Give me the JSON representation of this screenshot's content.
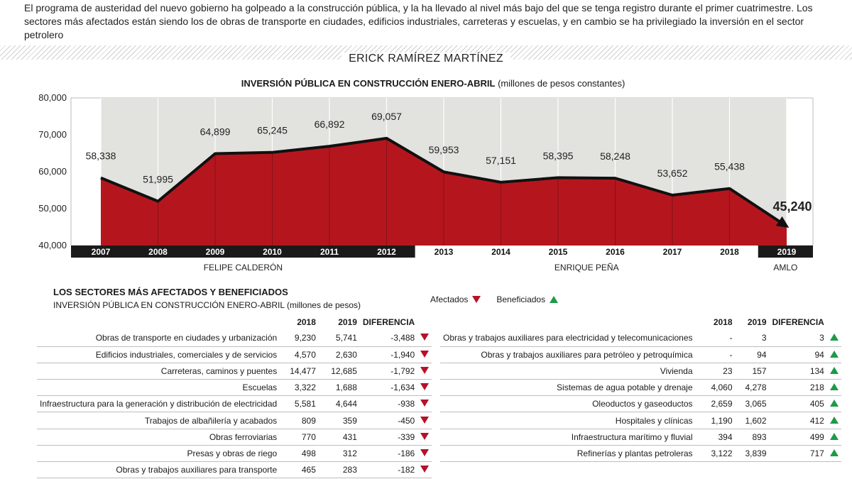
{
  "intro": "El programa de austeridad del nuevo gobierno ha golpeado a la construcción pública, y la ha llevado al nivel más bajo del que se tenga registro durante el primer cuatrimestre. Los sectores más afectados están siendo los de obras de transporte en ciudades, edificios industriales, carreteras y escuelas, y en cambio se ha privilegiado la inversión en el sector petrolero",
  "author": "ERICK RAMÍREZ MARTÍNEZ",
  "chart_data": {
    "type": "area",
    "title": "INVERSIÓN PÚBLICA EN CONSTRUCCIÓN ENERO-ABRIL",
    "title_unit": "(millones de pesos constantes)",
    "categories": [
      "2007",
      "2008",
      "2009",
      "2010",
      "2011",
      "2012",
      "2013",
      "2014",
      "2015",
      "2016",
      "2017",
      "2018",
      "2019"
    ],
    "values": [
      58338,
      51995,
      64899,
      65245,
      66892,
      69057,
      59953,
      57151,
      58395,
      58248,
      53652,
      55438,
      45240
    ],
    "value_labels": [
      "58,338",
      "51,995",
      "64,899",
      "65,245",
      "66,892",
      "69,057",
      "59,953",
      "57,151",
      "58,395",
      "58,248",
      "53,652",
      "55,438",
      "45,240"
    ],
    "ylim": [
      40000,
      80000
    ],
    "y_ticks": [
      40000,
      50000,
      60000,
      70000,
      80000
    ],
    "y_tick_labels": [
      "40,000",
      "50,000",
      "60,000",
      "70,000",
      "80,000"
    ],
    "grid": true,
    "area_color": "#b5161e",
    "background_color": "#e2e2de",
    "periods": [
      {
        "label": "FELIPE CALDERÓN",
        "start": "2007",
        "end": "2012",
        "bar_color": "#1a1a1a"
      },
      {
        "label": "ENRIQUE PEÑA",
        "start": "2013",
        "end": "2018",
        "bar_color": "#ffffff"
      },
      {
        "label": "AMLO",
        "start": "2019",
        "end": "2019",
        "bar_color": "#1a1a1a"
      }
    ]
  },
  "sectors": {
    "title": "LOS SECTORES MÁS AFECTADOS Y BENEFICIADOS",
    "subtitle": "INVERSIÓN PÚBLICA EN CONSTRUCCIÓN ENERO-ABRIL (millones de pesos)",
    "legend_affected": "Afectados",
    "legend_benefited": "Beneficiados",
    "columns": [
      "",
      "2018",
      "2019",
      "DIFERENCIA"
    ],
    "affected": [
      {
        "name": "Obras de transporte en ciudades y urbanización",
        "y2018": "9,230",
        "y2019": "5,741",
        "diff": "-3,488"
      },
      {
        "name": "Edificios industriales, comerciales y de servicios",
        "y2018": "4,570",
        "y2019": "2,630",
        "diff": "-1,940"
      },
      {
        "name": "Carreteras, caminos y puentes",
        "y2018": "14,477",
        "y2019": "12,685",
        "diff": "-1,792"
      },
      {
        "name": "Escuelas",
        "y2018": "3,322",
        "y2019": "1,688",
        "diff": "-1,634"
      },
      {
        "name": "Infraestructura para la generación y distribución de electricidad",
        "y2018": "5,581",
        "y2019": "4,644",
        "diff": "-938"
      },
      {
        "name": "Trabajos de albañilería y acabados",
        "y2018": "809",
        "y2019": "359",
        "diff": "-450"
      },
      {
        "name": "Obras ferroviarias",
        "y2018": "770",
        "y2019": "431",
        "diff": "-339"
      },
      {
        "name": "Presas y obras de riego",
        "y2018": "498",
        "y2019": "312",
        "diff": "-186"
      },
      {
        "name": "Obras y trabajos auxiliares para transporte",
        "y2018": "465",
        "y2019": "283",
        "diff": "-182"
      }
    ],
    "benefited": [
      {
        "name": "Obras y trabajos auxiliares para electricidad y telecomunicaciones",
        "y2018": "-",
        "y2019": "3",
        "diff": "3"
      },
      {
        "name": "Obras y trabajos auxiliares para petróleo y petroquímica",
        "y2018": "-",
        "y2019": "94",
        "diff": "94"
      },
      {
        "name": "Vivienda",
        "y2018": "23",
        "y2019": "157",
        "diff": "134"
      },
      {
        "name": "Sistemas de agua potable y drenaje",
        "y2018": "4,060",
        "y2019": "4,278",
        "diff": "218"
      },
      {
        "name": "Oleoductos y gaseoductos",
        "y2018": "2,659",
        "y2019": "3,065",
        "diff": "405"
      },
      {
        "name": "Hospitales y clínicas",
        "y2018": "1,190",
        "y2019": "1,602",
        "diff": "412"
      },
      {
        "name": "Infraestructura marítimo y fluvial",
        "y2018": "394",
        "y2019": "893",
        "diff": "499"
      },
      {
        "name": "Refinerías y plantas petroleras",
        "y2018": "3,122",
        "y2019": "3,839",
        "diff": "717"
      }
    ]
  }
}
